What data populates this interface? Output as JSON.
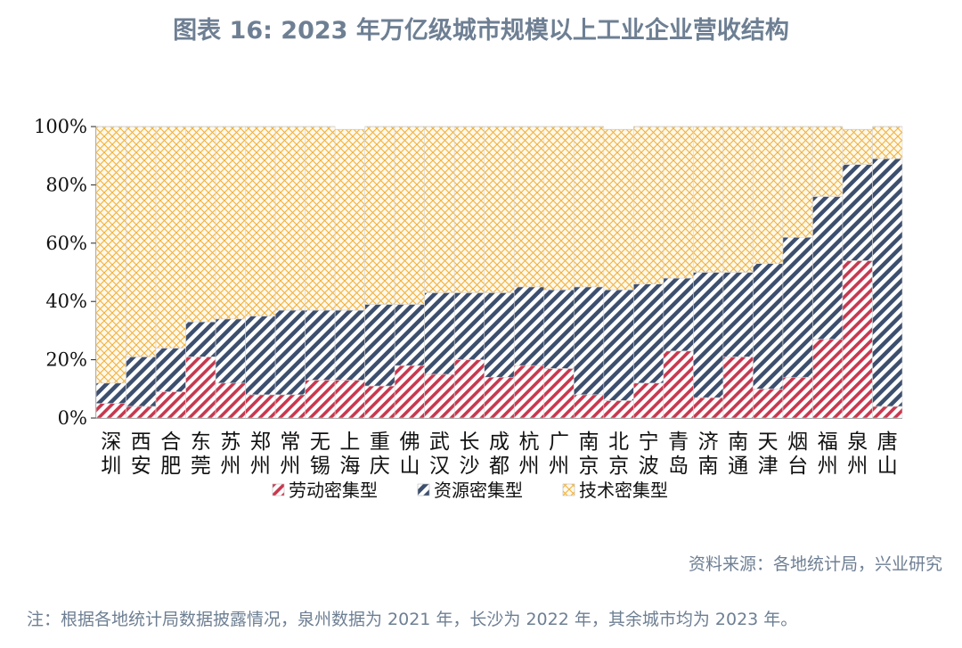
{
  "title": "图表 16: 2023 年万亿级城市规模以上工业企业营收结构",
  "source": "资料来源：各地统计局，兴业研究",
  "note": "注：根据各地统计局数据披露情况，泉州数据为 2021 年，长沙为 2022 年，其余城市均为 2023 年。",
  "colors": {
    "labor": "#c8384f",
    "resource": "#3d4f6e",
    "tech": "#f2b13a"
  },
  "chart_data": {
    "type": "bar",
    "stacked": true,
    "ylim": [
      0,
      100
    ],
    "yticks": [
      "0%",
      "20%",
      "40%",
      "60%",
      "80%",
      "100%"
    ],
    "legend_position": "bottom",
    "categories": [
      "深圳",
      "西安",
      "合肥",
      "东莞",
      "苏州",
      "郑州",
      "常州",
      "无锡",
      "上海",
      "重庆",
      "佛山",
      "武汉",
      "长沙",
      "成都",
      "杭州",
      "广州",
      "南京",
      "北京",
      "宁波",
      "青岛",
      "济南",
      "南通",
      "天津",
      "烟台",
      "福州",
      "泉州",
      "唐山"
    ],
    "series": [
      {
        "name": "劳动密集型",
        "values": [
          5,
          4,
          9,
          21,
          12,
          8,
          8,
          13,
          13,
          11,
          18,
          15,
          20,
          14,
          18,
          17,
          8,
          6,
          12,
          23,
          7,
          21,
          10,
          14,
          27,
          54,
          4
        ]
      },
      {
        "name": "资源密集型",
        "values": [
          7,
          17,
          15,
          12,
          22,
          27,
          29,
          24,
          24,
          28,
          21,
          28,
          23,
          29,
          27,
          27,
          37,
          38,
          34,
          25,
          43,
          29,
          43,
          48,
          49,
          33,
          85
        ]
      },
      {
        "name": "技术密集型",
        "values": [
          88,
          79,
          76,
          67,
          66,
          65,
          63,
          63,
          62,
          61,
          61,
          57,
          57,
          57,
          55,
          56,
          55,
          55,
          54,
          52,
          50,
          50,
          47,
          38,
          24,
          12,
          11
        ]
      }
    ]
  }
}
